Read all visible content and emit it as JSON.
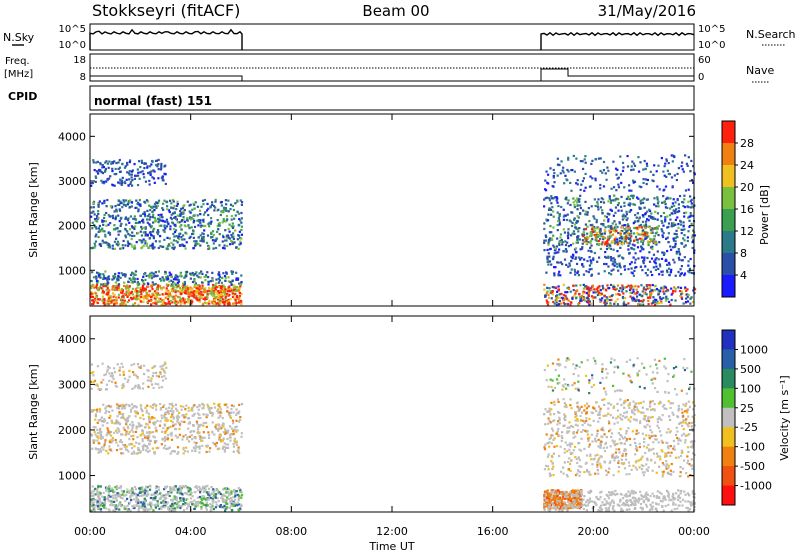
{
  "header": {
    "station": "Stokkseyri (fitACF)",
    "beam": "Beam 00",
    "date": "31/May/2016"
  },
  "noise_panel": {
    "left_label": "N.Sky",
    "left_ticks": [
      "10^5",
      "10^0"
    ],
    "right_ticks": [
      "10^5",
      "10^0"
    ],
    "right_label": "N.Search"
  },
  "freq_panel": {
    "left_label_1": "Freq.",
    "left_label_2": "[MHz]",
    "left_ticks": [
      "18",
      "8"
    ],
    "right_ticks": [
      "60",
      "0"
    ],
    "right_label": "Nave"
  },
  "cpid_panel": {
    "label": "CPID",
    "mode": "normal (fast) 151"
  },
  "chart_data": [
    {
      "type": "heatmap",
      "name": "power",
      "ylabel": "Slant Range [km]",
      "yticks": [
        "4000",
        "3000",
        "2000",
        "1000"
      ],
      "colorbar_label": "Power [dB]",
      "colorbar_ticks": [
        "28",
        "24",
        "20",
        "16",
        "12",
        "8",
        "4"
      ],
      "colorbar_colors": [
        "#1a1aff",
        "#2a4fa8",
        "#2a7a8a",
        "#3aa050",
        "#7ac040",
        "#f0c020",
        "#f08010",
        "#ff2010"
      ]
    },
    {
      "type": "heatmap",
      "name": "velocity",
      "ylabel": "Slant Range [km]",
      "yticks": [
        "4000",
        "3000",
        "2000",
        "1000"
      ],
      "colorbar_label": "Velocity [m s⁻¹]",
      "colorbar_ticks": [
        "1000",
        "500",
        "100",
        "25",
        "-25",
        "-100",
        "-500",
        "-1000"
      ],
      "colorbar_colors": [
        "#2030c0",
        "#2860a8",
        "#2a8a60",
        "#50c030",
        "#c0c0c0",
        "#f0c020",
        "#f08010",
        "#f05010",
        "#ff1010"
      ],
      "xlabel": "Time UT",
      "xticks": [
        "00:00",
        "04:00",
        "08:00",
        "12:00",
        "16:00",
        "20:00",
        "00:00"
      ]
    }
  ]
}
